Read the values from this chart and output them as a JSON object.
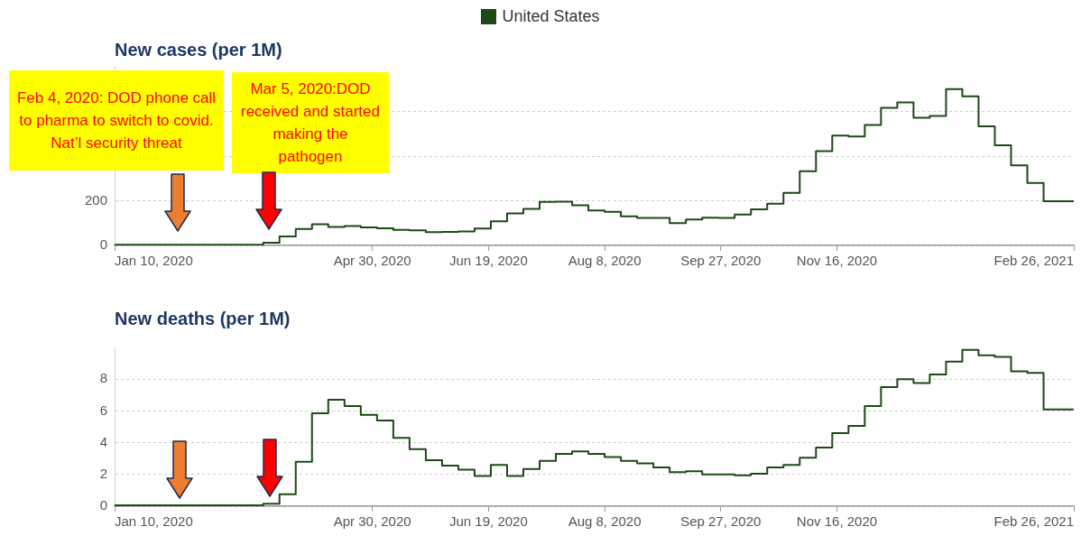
{
  "chart_data": [
    {
      "type": "step",
      "title": "New cases (per 1M)",
      "legend": "top",
      "grid": "y",
      "annotations": [
        "Feb 4, 2020: DOD phone call to pharma to switch to covid. Nat’l security threat",
        "Mar 5, 2020:DOD received and started making the pathogen"
      ],
      "x": [
        "2020-01-10",
        "2020-03-14",
        "2020-03-21",
        "2020-03-28",
        "2020-04-04",
        "2020-04-11",
        "2020-04-18",
        "2020-04-25",
        "2020-05-02",
        "2020-05-09",
        "2020-05-16",
        "2020-05-23",
        "2020-05-30",
        "2020-06-06",
        "2020-06-13",
        "2020-06-20",
        "2020-06-27",
        "2020-07-04",
        "2020-07-11",
        "2020-07-18",
        "2020-07-25",
        "2020-08-01",
        "2020-08-08",
        "2020-08-15",
        "2020-08-22",
        "2020-08-29",
        "2020-09-05",
        "2020-09-12",
        "2020-09-19",
        "2020-09-26",
        "2020-10-03",
        "2020-10-10",
        "2020-10-17",
        "2020-10-24",
        "2020-10-31",
        "2020-11-07",
        "2020-11-14",
        "2020-11-21",
        "2020-11-28",
        "2020-12-05",
        "2020-12-12",
        "2020-12-19",
        "2020-12-26",
        "2021-01-02",
        "2021-01-09",
        "2021-01-16",
        "2021-01-23",
        "2021-01-30",
        "2021-02-06",
        "2021-02-13",
        "2021-02-20",
        "2021-02-26"
      ],
      "series": [
        {
          "name": "United States",
          "color": "#1b4a14",
          "values": [
            0,
            3,
            12,
            40,
            74,
            95,
            83,
            87,
            81,
            77,
            70,
            68,
            60,
            61,
            63,
            76,
            108,
            143,
            164,
            195,
            196,
            180,
            157,
            151,
            130,
            123,
            123,
            100,
            116,
            124,
            123,
            138,
            162,
            187,
            235,
            332,
            422,
            492,
            488,
            539,
            616,
            640,
            572,
            580,
            700,
            668,
            533,
            448,
            359,
            280,
            198,
            198
          ]
        }
      ],
      "xlim": [
        "2020-01-10",
        "2021-02-26"
      ],
      "xticks": [
        {
          "value": "2020-01-10",
          "label": "Jan 10, 2020"
        },
        {
          "value": "2020-04-30",
          "label": "Apr 30, 2020"
        },
        {
          "value": "2020-06-19",
          "label": "Jun 19, 2020"
        },
        {
          "value": "2020-08-08",
          "label": "Aug 8, 2020"
        },
        {
          "value": "2020-09-27",
          "label": "Sep 27, 2020"
        },
        {
          "value": "2020-11-16",
          "label": "Nov 16, 2020"
        },
        {
          "value": "2021-02-26",
          "label": "Feb 26, 2021"
        }
      ],
      "ylim": [
        0,
        800
      ],
      "yticks": [
        0,
        200,
        {
          "value": 400,
          "label": null
        },
        {
          "value": 600,
          "label": null
        }
      ]
    },
    {
      "type": "step",
      "title": "New deaths (per 1M)",
      "grid": "y",
      "x": [
        "2020-01-10",
        "2020-03-14",
        "2020-03-21",
        "2020-03-28",
        "2020-04-04",
        "2020-04-11",
        "2020-04-18",
        "2020-04-25",
        "2020-05-02",
        "2020-05-09",
        "2020-05-16",
        "2020-05-23",
        "2020-05-30",
        "2020-06-06",
        "2020-06-13",
        "2020-06-20",
        "2020-06-27",
        "2020-07-04",
        "2020-07-11",
        "2020-07-18",
        "2020-07-25",
        "2020-08-01",
        "2020-08-08",
        "2020-08-15",
        "2020-08-22",
        "2020-08-29",
        "2020-09-05",
        "2020-09-12",
        "2020-09-19",
        "2020-09-26",
        "2020-10-03",
        "2020-10-10",
        "2020-10-17",
        "2020-10-24",
        "2020-10-31",
        "2020-11-07",
        "2020-11-14",
        "2020-11-21",
        "2020-11-28",
        "2020-12-05",
        "2020-12-12",
        "2020-12-19",
        "2020-12-26",
        "2021-01-02",
        "2021-01-09",
        "2021-01-16",
        "2021-01-23",
        "2021-01-30",
        "2021-02-06",
        "2021-02-13",
        "2021-02-20",
        "2021-02-26"
      ],
      "series": [
        {
          "color": "#1b4a14",
          "values": [
            0,
            0.05,
            0.15,
            0.75,
            2.8,
            5.85,
            6.7,
            6.3,
            5.75,
            5.4,
            4.3,
            3.6,
            2.9,
            2.55,
            2.3,
            1.9,
            2.6,
            1.9,
            2.35,
            2.85,
            3.3,
            3.45,
            3.3,
            3.1,
            2.85,
            2.7,
            2.45,
            2.15,
            2.2,
            2.0,
            2.0,
            1.95,
            2.05,
            2.45,
            2.6,
            3.05,
            3.7,
            4.6,
            5.05,
            6.3,
            7.5,
            8.0,
            7.75,
            8.3,
            9.1,
            9.85,
            9.5,
            9.4,
            8.5,
            8.4,
            6.1,
            6.1
          ]
        }
      ],
      "xlim": [
        "2020-01-10",
        "2021-02-26"
      ],
      "xticks": [
        {
          "value": "2020-01-10",
          "label": "Jan 10, 2020"
        },
        {
          "value": "2020-04-30",
          "label": "Apr 30, 2020"
        },
        {
          "value": "2020-06-19",
          "label": "Jun 19, 2020"
        },
        {
          "value": "2020-08-08",
          "label": "Aug 8, 2020"
        },
        {
          "value": "2020-09-27",
          "label": "Sep 27, 2020"
        },
        {
          "value": "2020-11-16",
          "label": "Nov 16, 2020"
        },
        {
          "value": "2021-02-26",
          "label": "Feb 26, 2021"
        }
      ],
      "ylim": [
        0,
        10
      ],
      "yticks": [
        0,
        2,
        4,
        6,
        8
      ]
    }
  ]
}
